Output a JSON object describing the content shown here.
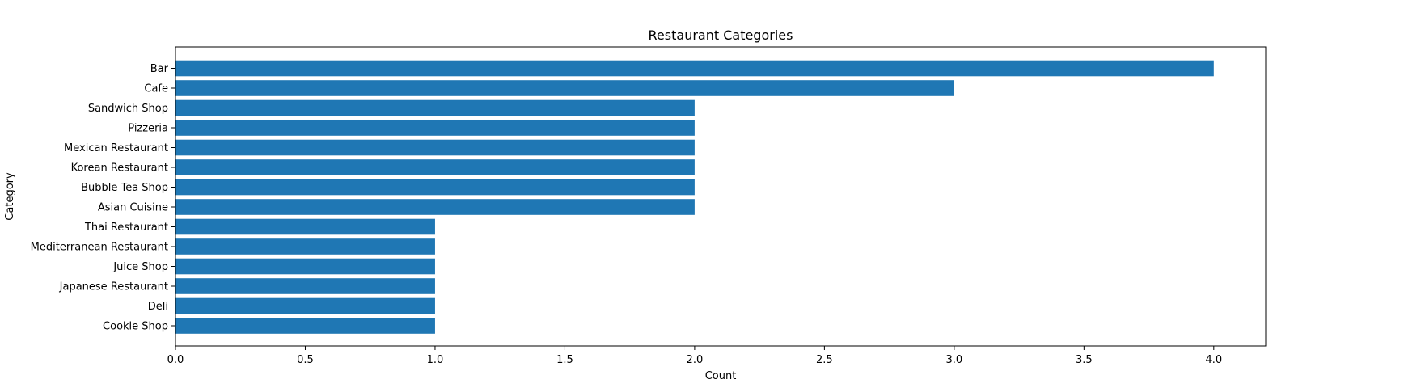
{
  "chart_data": {
    "type": "bar",
    "orientation": "horizontal",
    "title": "Restaurant Categories",
    "xlabel": "Count",
    "ylabel": "Category",
    "categories": [
      "Bar",
      "Cafe",
      "Sandwich Shop",
      "Pizzeria",
      "Mexican Restaurant",
      "Korean Restaurant",
      "Bubble Tea Shop",
      "Asian Cuisine ",
      "Thai Restaurant",
      "Mediterranean Restaurant",
      "Juice Shop",
      "Japanese Restaurant",
      "Deli",
      "Cookie Shop"
    ],
    "values": [
      4,
      3,
      2,
      2,
      2,
      2,
      2,
      2,
      1,
      1,
      1,
      1,
      1,
      1
    ],
    "xlim": [
      0,
      4.2
    ],
    "xticks": [
      "0.0",
      "0.5",
      "1.0",
      "1.5",
      "2.0",
      "2.5",
      "3.0",
      "3.5",
      "4.0"
    ],
    "grid": false,
    "bar_color": "#1f77b4"
  }
}
